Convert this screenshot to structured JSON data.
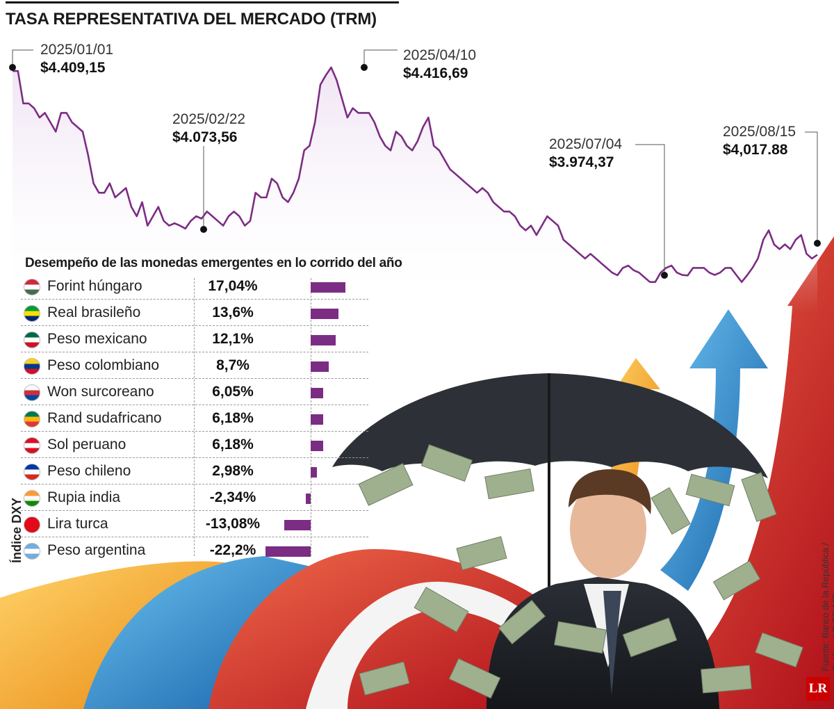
{
  "title": "TASA REPRESENTATIVA DEL MERCADO (TRM)",
  "chart_data": [
    {
      "type": "line",
      "title": "TASA REPRESENTATIVA DEL MERCADO (TRM)",
      "xlabel": "",
      "ylabel": "",
      "x_range": [
        "2025/01/01",
        "2025/08/15"
      ],
      "ylim": [
        3900,
        4500
      ],
      "grid": false,
      "values": [
        4409.15,
        4409,
        4340,
        4340,
        4330,
        4310,
        4320,
        4300,
        4280,
        4320,
        4320,
        4300,
        4290,
        4280,
        4230,
        4170,
        4150,
        4150,
        4170,
        4140,
        4150,
        4160,
        4120,
        4100,
        4130,
        4080,
        4100,
        4120,
        4090,
        4080,
        4085,
        4080,
        4073.56,
        4090,
        4100,
        4095,
        4110,
        4100,
        4090,
        4080,
        4100,
        4110,
        4100,
        4080,
        4090,
        4150,
        4140,
        4140,
        4180,
        4170,
        4140,
        4130,
        4150,
        4180,
        4240,
        4250,
        4300,
        4380,
        4400,
        4416.69,
        4390,
        4350,
        4310,
        4330,
        4320,
        4320,
        4320,
        4300,
        4270,
        4250,
        4240,
        4280,
        4270,
        4250,
        4240,
        4260,
        4290,
        4310,
        4250,
        4240,
        4220,
        4200,
        4190,
        4180,
        4170,
        4160,
        4150,
        4160,
        4150,
        4130,
        4120,
        4110,
        4110,
        4100,
        4080,
        4070,
        4080,
        4060,
        4080,
        4100,
        4090,
        4080,
        4050,
        4040,
        4030,
        4020,
        4010,
        4020,
        4010,
        4000,
        3990,
        3980,
        3974.37,
        3990,
        3995,
        3985,
        3980,
        3970,
        3960,
        3960,
        3980,
        3990,
        3995,
        3980,
        3975,
        3974,
        3990,
        3990,
        3990,
        3980,
        3975,
        3980,
        3990,
        3990,
        3975,
        3960,
        3974.37,
        3990,
        4010,
        4050,
        4070,
        4040,
        4030,
        4040,
        4030,
        4050,
        4060,
        4020,
        4010,
        4017.88
      ],
      "series": [
        {
          "name": "",
          "values_note": "",
          "color": "#7b2d83"
        }
      ],
      "annotations": [
        {
          "date": "2025/01/01",
          "value": "$4.409,15"
        },
        {
          "date": "2025/02/22",
          "value": "$4.073,56"
        },
        {
          "date": "2025/04/10",
          "value": "$4.416,69"
        },
        {
          "date": "2025/07/04",
          "value": "$3.974,37"
        },
        {
          "date": "2025/08/15",
          "value": "$4,017.88"
        }
      ],
      "annotation_points": [
        {
          "date": "2025/01/01",
          "y": 4409.15
        },
        {
          "date": "2025/02/22",
          "y": 4073.56
        },
        {
          "date": "2025/04/10",
          "y": 4416.69
        },
        {
          "date": "2025/07/04",
          "y": 3974.37
        },
        {
          "date": "2025/08/15",
          "y": 4017.88
        }
      ]
    },
    {
      "type": "bar",
      "title": "Desempeño de las monedas emergentes en lo corrido del año",
      "categories": [
        "Forint húngaro",
        "Real brasileño",
        "Peso mexicano",
        "Peso colombiano",
        "Won surcoreano",
        "Rand sudafricano",
        "Sol peruano",
        "Peso chileno",
        "Rupia india",
        "Lira turca",
        "Peso argentina"
      ],
      "value_labels": [
        "17,04%",
        "13,6%",
        "12,1%",
        "8,7%",
        "6,05%",
        "6,18%",
        "6,18%",
        "2,98%",
        "-2,34%",
        "-13,08%",
        "-22,2%"
      ],
      "values": [
        17.04,
        13.6,
        12.1,
        8.7,
        6.05,
        6.18,
        6.18,
        2.98,
        -2.34,
        -13.08,
        -22.2
      ],
      "xlim": [
        -22.2,
        17.04
      ],
      "bar_color": "#7b2d83"
    }
  ],
  "side_label": "Índice DXY",
  "source": "Fuente: Banco de la República / Gráfico: LR-ER-MB",
  "logo": "LR",
  "colors": {
    "line": "#7b2d83",
    "fill": "#e9d9f0",
    "bar": "#7b2d83"
  }
}
